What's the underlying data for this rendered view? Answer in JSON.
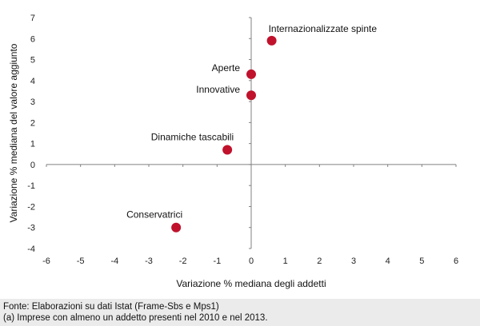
{
  "chart_data": {
    "type": "scatter",
    "title": "",
    "xlabel": "Variazione % mediana degli addetti",
    "ylabel": "Variazione  % mediana del valore aggiunto",
    "xlim": [
      -6,
      6
    ],
    "ylim": [
      -4,
      7
    ],
    "xticks": [
      -6,
      -5,
      -4,
      -3,
      -2,
      -1,
      0,
      1,
      2,
      3,
      4,
      5,
      6
    ],
    "yticks": [
      -4,
      -3,
      -2,
      -1,
      0,
      1,
      2,
      3,
      4,
      5,
      6,
      7
    ],
    "grid": false,
    "point_color": "#c0122c",
    "points": [
      {
        "label": "Internazionalizzate spinte",
        "x": 0.6,
        "y": 5.9
      },
      {
        "label": "Aperte",
        "x": 0.0,
        "y": 4.3
      },
      {
        "label": "Innovative",
        "x": 0.0,
        "y": 3.3
      },
      {
        "label": "Dinamiche tascabili",
        "x": -0.7,
        "y": 0.7
      },
      {
        "label": "Conservatrici",
        "x": -2.2,
        "y": -3.0
      }
    ]
  },
  "footer": {
    "source": "Fonte: Elaborazioni su dati Istat (Frame-Sbs e Mps1)",
    "note": "(a) Imprese con almeno un addetto presenti nel 2010 e nel 2013."
  }
}
